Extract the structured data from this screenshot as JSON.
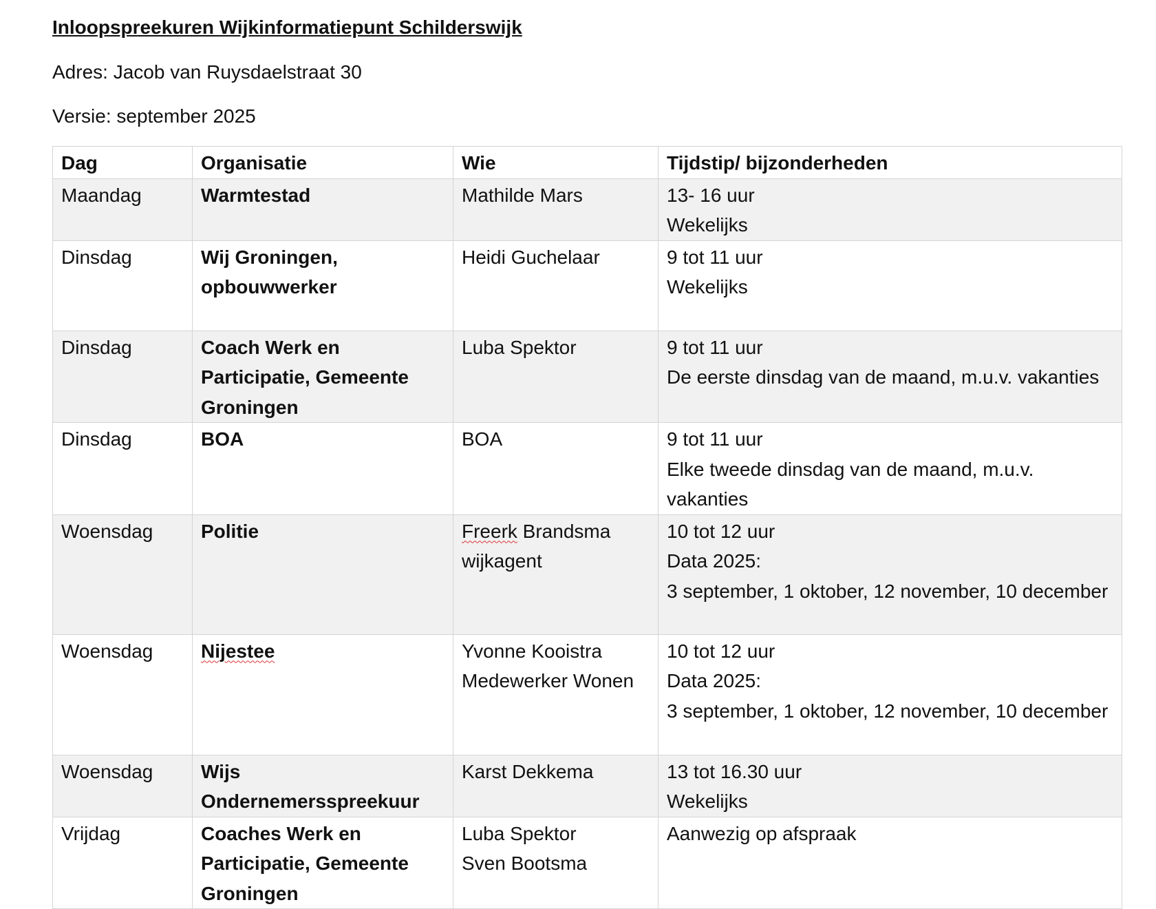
{
  "title": "Inloopspreekuren Wijkinformatiepunt Schilderswijk",
  "address": "Adres: Jacob van Ruysdaelstraat 30",
  "version": "Versie: september 2025",
  "table": {
    "headers": [
      "Dag",
      "Organisatie",
      "Wie",
      "Tijdstip/ bijzonderheden"
    ],
    "rows": [
      {
        "dag": "Maandag",
        "org": "Warmtestad",
        "wie": [
          "Mathilde Mars"
        ],
        "tijd": [
          "13- 16 uur",
          "Wekelijks"
        ]
      },
      {
        "dag": "Dinsdag",
        "org": "Wij Groningen, opbouwwerker",
        "wie": [
          "Heidi Guchelaar"
        ],
        "tijd": [
          "9 tot 11 uur",
          "Wekelijks"
        ]
      },
      {
        "dag": "Dinsdag",
        "org": "Coach Werk en Participatie, Gemeente Groningen",
        "wie": [
          "Luba Spektor"
        ],
        "tijd": [
          "9 tot 11 uur",
          "De eerste dinsdag van de maand, m.u.v. vakanties"
        ]
      },
      {
        "dag": "Dinsdag",
        "org": "BOA",
        "wie": [
          "BOA"
        ],
        "tijd": [
          "9 tot 11 uur",
          "Elke tweede dinsdag van de maand, m.u.v. vakanties"
        ]
      },
      {
        "dag": "Woensdag",
        "org": "Politie",
        "wie": [
          "Freerk Brandsma wijkagent"
        ],
        "tijd": [
          "10 tot 12 uur",
          "Data 2025:",
          "3 september, 1 oktober, 12 november, 10 december"
        ]
      },
      {
        "dag": "Woensdag",
        "org": "Nijestee",
        "wie": [
          "Yvonne Kooistra",
          "Medewerker Wonen"
        ],
        "tijd": [
          "10 tot 12 uur",
          "Data 2025:",
          "3 september, 1 oktober, 12 november, 10 december"
        ]
      },
      {
        "dag": "Woensdag",
        "org": "Wijs Ondernemersspreekuur",
        "wie": [
          "Karst Dekkema"
        ],
        "tijd": [
          "13 tot 16.30 uur",
          "Wekelijks"
        ]
      },
      {
        "dag": "Vrijdag",
        "org": "Coaches Werk en Participatie, Gemeente Groningen",
        "wie": [
          "Luba Spektor",
          "Sven Bootsma"
        ],
        "tijd": [
          "Aanwezig op afspraak"
        ]
      }
    ]
  }
}
